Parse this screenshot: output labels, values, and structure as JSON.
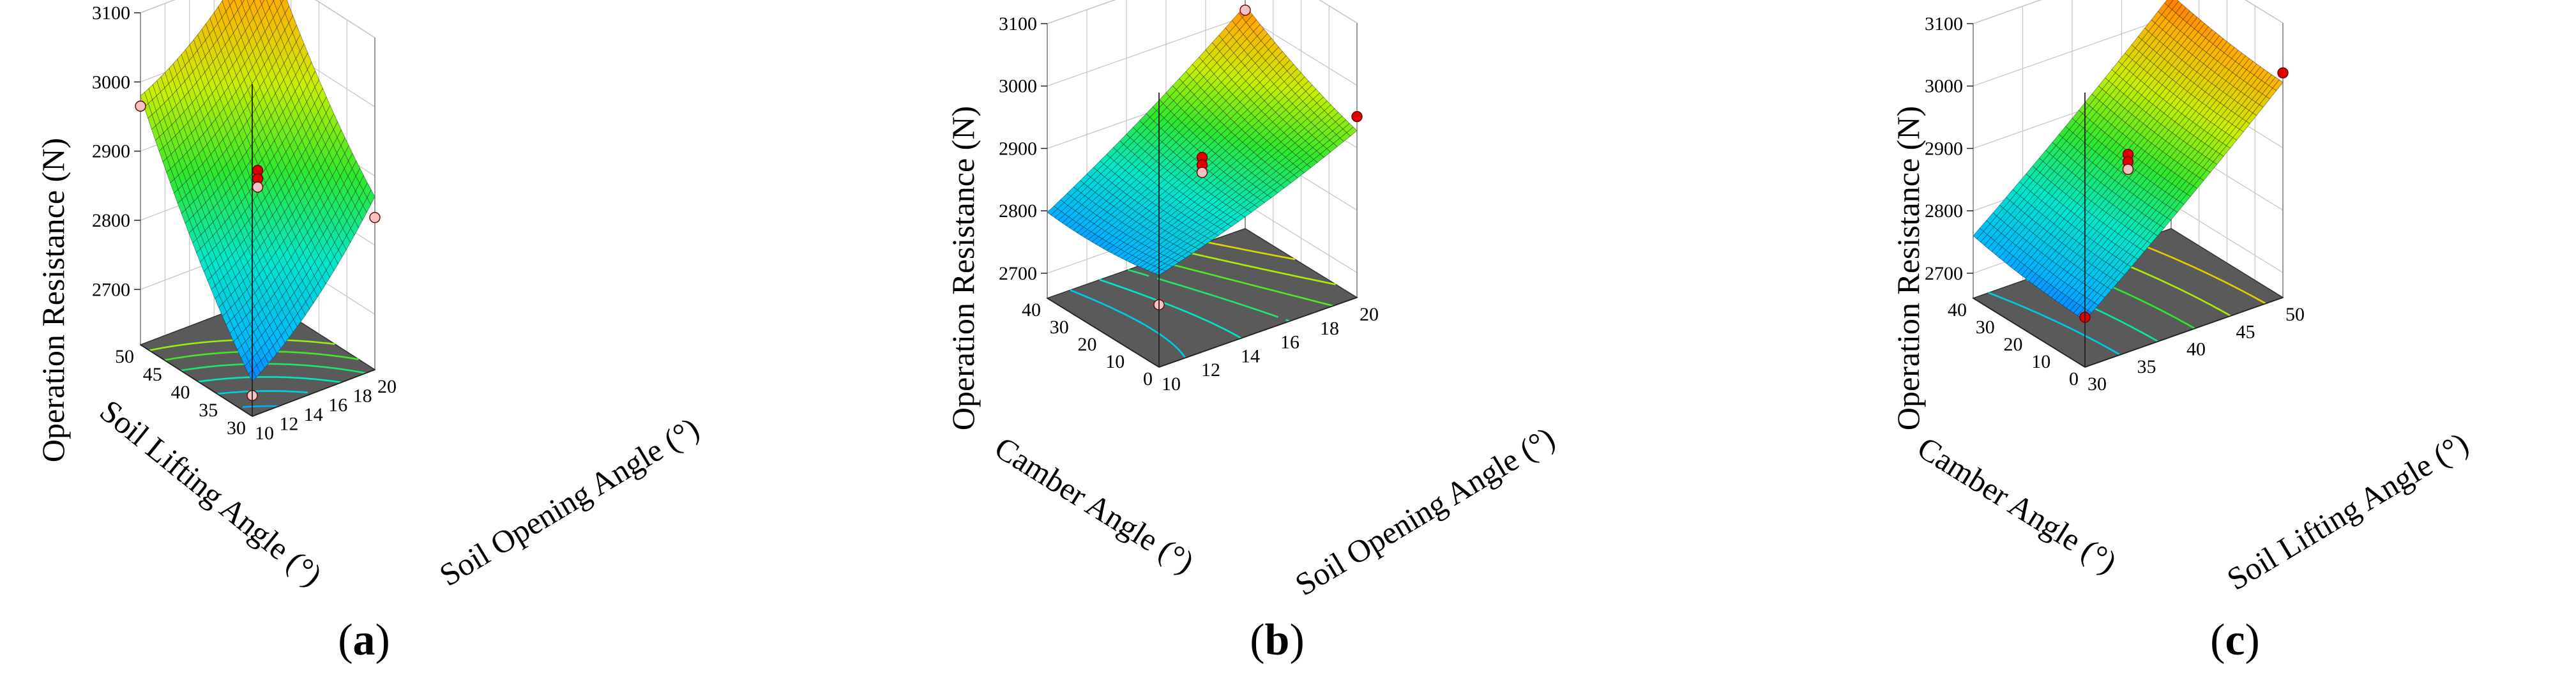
{
  "figure": {
    "panels": [
      {
        "id": "a",
        "caption_open": "(",
        "caption_letter": "a",
        "caption_close": ")"
      },
      {
        "id": "b",
        "caption_open": "(",
        "caption_letter": "b",
        "caption_close": ")"
      },
      {
        "id": "c",
        "caption_open": "(",
        "caption_letter": "c",
        "caption_close": ")"
      }
    ]
  },
  "chart_data": [
    {
      "type": "surface3d",
      "panel": "a",
      "zlabel": "Operation Resistance (N)",
      "xlabel": "Soil Lifting Angle (°)",
      "ylabel": "Soil Opening Angle (°)",
      "z_ticks": [
        "2700",
        "2800",
        "2900",
        "3000",
        "3100"
      ],
      "zlim": [
        2620,
        3100
      ],
      "x_ticks": [
        "30",
        "35",
        "40",
        "45",
        "50"
      ],
      "xlim": [
        30,
        50
      ],
      "y_ticks": [
        "10",
        "12",
        "14",
        "16",
        "18",
        "20"
      ],
      "ylim": [
        10,
        20
      ],
      "surface_corners": {
        "x_min_y_min": 2650,
        "x_min_y_max": 2850,
        "x_max_y_min": 2960,
        "x_max_y_max": 3125
      },
      "surface_curvature": 40,
      "colormap": [
        "#1a1aff",
        "#00b4ff",
        "#00e8c8",
        "#2ee82e",
        "#c8f000",
        "#ffb000",
        "#ff2a00"
      ],
      "floor_color": "#5a5a5a",
      "contour_levels": [
        2700,
        2750,
        2800,
        2850,
        2900,
        2950
      ],
      "design_points": [
        {
          "x": 30,
          "y": 10,
          "z": 2650
        },
        {
          "x": 50,
          "y": 10,
          "z": 2965
        },
        {
          "x": 30,
          "y": 20,
          "z": 2840
        },
        {
          "x": 40,
          "y": 15,
          "z": 2890
        },
        {
          "x": 40,
          "y": 15,
          "z": 2878
        },
        {
          "x": 40,
          "y": 15,
          "z": 2866
        }
      ]
    },
    {
      "type": "surface3d",
      "panel": "b",
      "zlabel": "Operation Resistance (N)",
      "xlabel": "Camber Angle (°)",
      "ylabel": "Soil Opening Angle (°)",
      "z_ticks": [
        "2700",
        "2800",
        "2900",
        "3000",
        "3100"
      ],
      "zlim": [
        2660,
        3100
      ],
      "x_ticks": [
        "0",
        "10",
        "20",
        "30",
        "40"
      ],
      "xlim": [
        0,
        40
      ],
      "y_ticks": [
        "10",
        "12",
        "14",
        "16",
        "18",
        "20"
      ],
      "ylim": [
        10,
        20
      ],
      "surface_corners": {
        "x_min_y_min": 2800,
        "x_min_y_max": 2920,
        "x_max_y_min": 2790,
        "x_max_y_max": 3010
      },
      "surface_curvature": 15,
      "colormap": [
        "#1a1aff",
        "#00b4ff",
        "#00e8c8",
        "#2ee82e",
        "#c8f000",
        "#ffb000",
        "#ff2a00"
      ],
      "floor_color": "#5a5a5a",
      "contour_levels": [
        2820,
        2850,
        2880,
        2910,
        2940,
        2970
      ],
      "design_points": [
        {
          "x": 0,
          "y": 10,
          "z": 2760
        },
        {
          "x": 0,
          "y": 20,
          "z": 2950
        },
        {
          "x": 40,
          "y": 20,
          "z": 3010
        },
        {
          "x": 20,
          "y": 15,
          "z": 2885
        },
        {
          "x": 20,
          "y": 15,
          "z": 2873
        },
        {
          "x": 20,
          "y": 15,
          "z": 2861
        }
      ]
    },
    {
      "type": "surface3d",
      "panel": "c",
      "zlabel": "Operation Resistance (N)",
      "xlabel": "Camber Angle (°)",
      "ylabel": "Soil Lifting Angle (°)",
      "z_ticks": [
        "2700",
        "2800",
        "2900",
        "3000",
        "3100"
      ],
      "zlim": [
        2660,
        3100
      ],
      "x_ticks": [
        "0",
        "10",
        "20",
        "30",
        "40"
      ],
      "xlim": [
        0,
        40
      ],
      "y_ticks": [
        "30",
        "35",
        "40",
        "45",
        "50"
      ],
      "ylim": [
        30,
        50
      ],
      "surface_corners": {
        "x_min_y_min": 2730,
        "x_min_y_max": 3000,
        "x_max_y_min": 2755,
        "x_max_y_max": 3030
      },
      "surface_curvature": 10,
      "colormap": [
        "#1a1aff",
        "#00b4ff",
        "#00e8c8",
        "#2ee82e",
        "#c8f000",
        "#ffb000",
        "#ff2a00"
      ],
      "floor_color": "#5a5a5a",
      "contour_levels": [
        2780,
        2830,
        2880,
        2930,
        2980
      ],
      "design_points": [
        {
          "x": 0,
          "y": 30,
          "z": 2740
        },
        {
          "x": 0,
          "y": 50,
          "z": 3020
        },
        {
          "x": 40,
          "y": 50,
          "z": 3120
        },
        {
          "x": 20,
          "y": 40,
          "z": 2890
        },
        {
          "x": 20,
          "y": 40,
          "z": 2878
        },
        {
          "x": 20,
          "y": 40,
          "z": 2866
        }
      ]
    }
  ]
}
